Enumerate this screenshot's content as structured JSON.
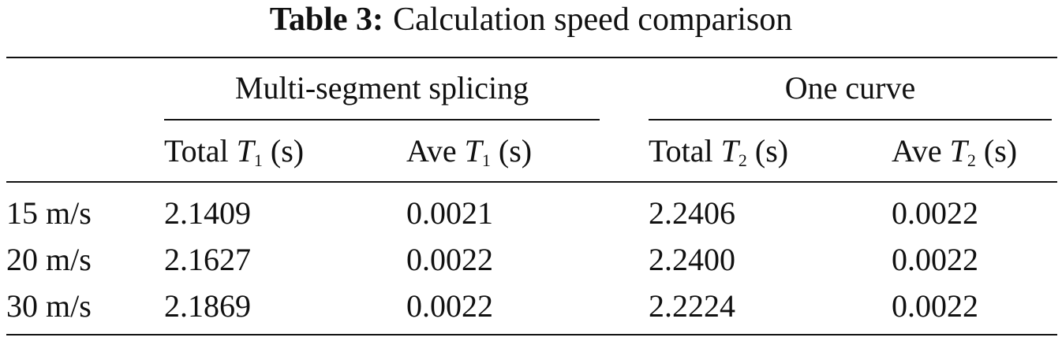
{
  "table": {
    "label": "Table 3:",
    "caption": "Calculation speed comparison",
    "groups": [
      "Multi-segment splicing",
      "One curve"
    ],
    "columns": [
      {
        "text": "Total",
        "var": "T",
        "sub": "1",
        "unit": "(s)"
      },
      {
        "text": "Ave",
        "var": "T",
        "sub": "1",
        "unit": "(s)"
      },
      {
        "text": "Total",
        "var": "T",
        "sub": "2",
        "unit": "(s)"
      },
      {
        "text": "Ave",
        "var": "T",
        "sub": "2",
        "unit": "(s)"
      }
    ],
    "rows": [
      [
        "15 m/s",
        "2.1409",
        "0.0021",
        "2.2406",
        "0.0022"
      ],
      [
        "20 m/s",
        "2.1627",
        "0.0022",
        "2.2400",
        "0.0022"
      ],
      [
        "30 m/s",
        "2.1869",
        "0.0022",
        "2.2224",
        "0.0022"
      ]
    ]
  }
}
